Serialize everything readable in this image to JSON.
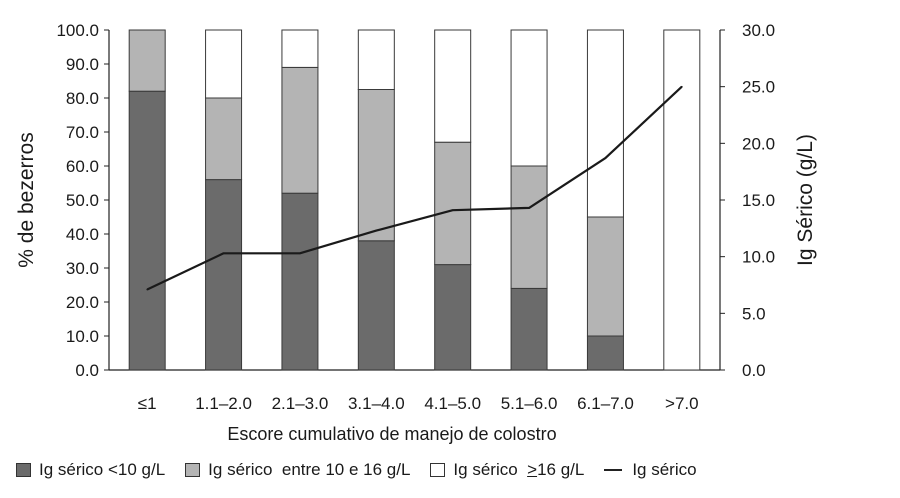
{
  "chart_data": {
    "type": "bar",
    "stacked": true,
    "categories": [
      "≤1",
      "1.1–2.0",
      "2.1–3.0",
      "3.1–4.0",
      "4.1–5.0",
      "5.1–6.0",
      "6.1–7.0",
      ">7.0"
    ],
    "series": [
      {
        "name": "Ig sérico <10 g/L",
        "color": "#6b6b6b",
        "values": [
          82,
          56,
          52,
          38,
          31,
          24,
          10,
          0
        ]
      },
      {
        "name": "Ig sérico  entre 10 e 16 g/L",
        "color": "#b4b4b4",
        "values": [
          18,
          24,
          37,
          44.5,
          36,
          36,
          35,
          0
        ]
      },
      {
        "name": "Ig sérico  >16 g/L",
        "color": "#ffffff",
        "values": [
          0,
          20,
          11,
          17.5,
          33,
          40,
          55,
          100
        ]
      }
    ],
    "line_series": {
      "name": "Ig sérico",
      "color": "#1a1a1a",
      "axis": "right",
      "values": [
        7.1,
        10.3,
        10.3,
        12.3,
        14.1,
        14.3,
        18.7,
        25.0
      ]
    },
    "xlabel": "Escore cumulativo de manejo de colostro",
    "ylabel": "% de bezerros",
    "y2label": "Ig Sérico (g/L)",
    "ylim": [
      0,
      100
    ],
    "y2lim": [
      0,
      30
    ],
    "yticks": [
      "0.0",
      "10.0",
      "20.0",
      "30.0",
      "40.0",
      "50.0",
      "60.0",
      "70.0",
      "80.0",
      "90.0",
      "100.0"
    ],
    "y2ticks": [
      "0.0",
      "5.0",
      "10.0",
      "15.0",
      "20.0",
      "25.0",
      "30.0"
    ],
    "grid": false,
    "legend_position": "bottom"
  },
  "legend": {
    "items": [
      {
        "kind": "swatch",
        "color": "#6b6b6b",
        "label": "Ig sérico <10 g/L"
      },
      {
        "kind": "swatch",
        "color": "#b4b4b4",
        "label": "Ig sérico  entre 10 e 16 g/L"
      },
      {
        "kind": "swatch",
        "color": "#ffffff",
        "label_prefix": "Ig sérico  ",
        "label_underlined": ">",
        "label_suffix": "16 g/L"
      },
      {
        "kind": "line",
        "color": "#1a1a1a",
        "label": "Ig sérico"
      }
    ]
  }
}
